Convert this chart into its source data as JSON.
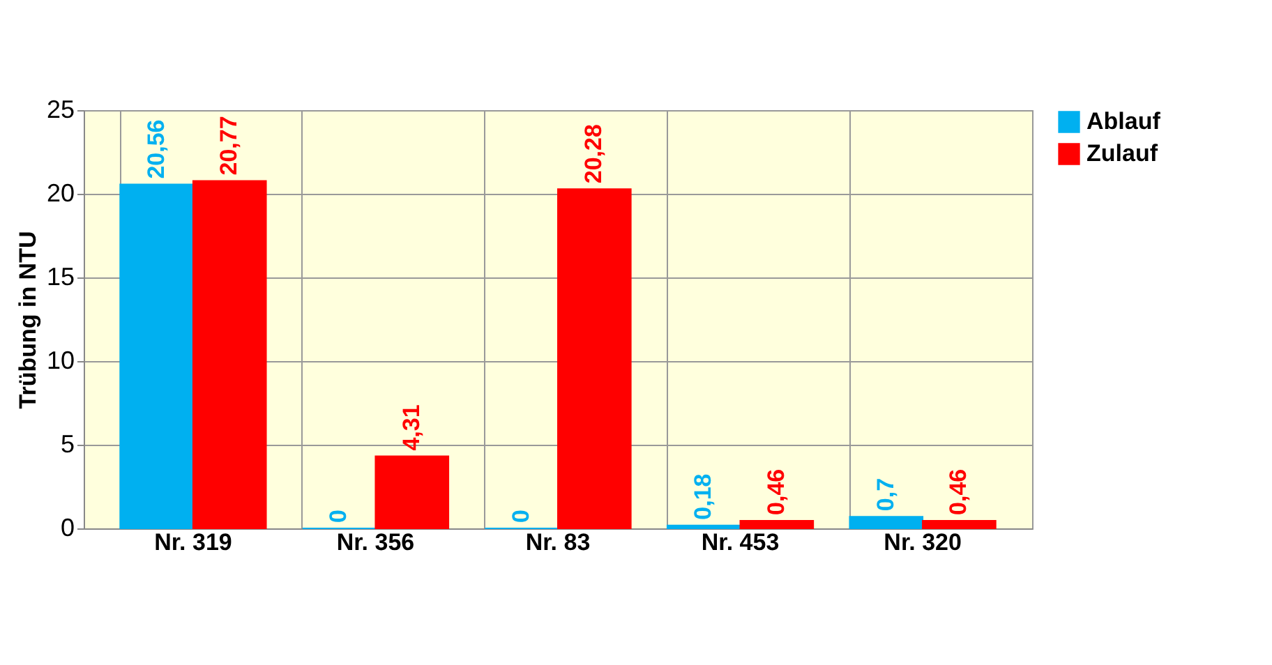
{
  "chart_data": {
    "type": "bar",
    "ylabel": "Trübung in NTU",
    "categories": [
      "Nr. 319",
      "Nr. 356",
      "Nr. 83",
      "Nr. 453",
      "Nr. 320"
    ],
    "series": [
      {
        "name": "Ablauf",
        "color": "#00b0f0",
        "values": [
          20.56,
          0,
          0,
          0.18,
          0.7
        ],
        "value_labels": [
          "20,56",
          "0",
          "0",
          "0,18",
          "0,7"
        ]
      },
      {
        "name": "Zulauf",
        "color": "#ff0000",
        "values": [
          20.77,
          4.31,
          20.28,
          0.46,
          0.46
        ],
        "value_labels": [
          "20,77",
          "4,31",
          "20,28",
          "0,46",
          "0,46"
        ]
      }
    ],
    "ylim": [
      0,
      25
    ],
    "yticks": [
      0,
      5,
      10,
      15,
      20,
      25
    ],
    "grid": true,
    "legend": "right"
  }
}
